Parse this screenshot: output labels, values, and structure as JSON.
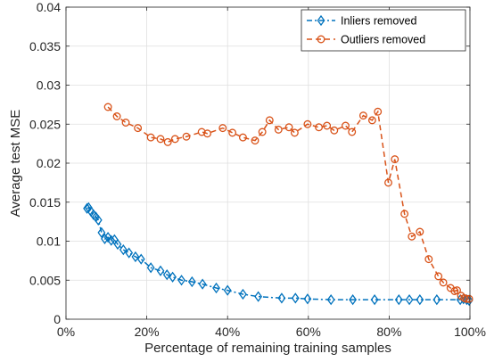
{
  "chart_data": {
    "type": "line",
    "xlabel": "Percentage of remaining training samples",
    "ylabel": "Average test MSE",
    "xlim": [
      0,
      100
    ],
    "ylim": [
      0,
      0.04
    ],
    "x_ticks": [
      0,
      20,
      40,
      60,
      80,
      100
    ],
    "x_tick_labels": [
      "0%",
      "20%",
      "40%",
      "60%",
      "80%",
      "100%"
    ],
    "y_ticks": [
      0,
      0.005,
      0.01,
      0.015,
      0.02,
      0.025,
      0.03,
      0.035,
      0.04
    ],
    "y_tick_labels": [
      "0",
      "0.005",
      "0.01",
      "0.015",
      "0.02",
      "0.025",
      "0.03",
      "0.035",
      "0.04"
    ],
    "grid": true,
    "legend_position": "top-right",
    "series": [
      {
        "name": "Inliers removed",
        "color": "#0072BD",
        "marker": "diamond",
        "line_style": "dash-dot",
        "x": [
          5.2,
          5.6,
          6.2,
          6.8,
          7.4,
          8.0,
          8.8,
          9.6,
          10.4,
          11.2,
          12.0,
          12.8,
          14.2,
          15.6,
          17.2,
          18.6,
          21.0,
          23.4,
          25.0,
          26.4,
          28.6,
          31.2,
          33.8,
          37.2,
          40.0,
          43.8,
          47.6,
          53.4,
          56.8,
          59.8,
          65.6,
          71.0,
          76.4,
          82.4,
          85.0,
          87.6,
          91.8,
          97.6,
          98.4,
          99.2,
          99.8
        ],
        "y": [
          0.0142,
          0.0143,
          0.0138,
          0.0134,
          0.0131,
          0.0127,
          0.0111,
          0.0103,
          0.0105,
          0.0101,
          0.0102,
          0.0096,
          0.0089,
          0.0085,
          0.008,
          0.0077,
          0.0066,
          0.0062,
          0.0057,
          0.0054,
          0.005,
          0.0048,
          0.0045,
          0.004,
          0.0037,
          0.0032,
          0.0029,
          0.0027,
          0.0027,
          0.0026,
          0.0025,
          0.0025,
          0.0025,
          0.0025,
          0.0025,
          0.0025,
          0.0025,
          0.0025,
          0.0026,
          0.0025,
          0.0024
        ]
      },
      {
        "name": "Outliers removed",
        "color": "#D95319",
        "marker": "circle",
        "line_style": "dashed",
        "x": [
          10.4,
          12.6,
          14.8,
          17.8,
          21.0,
          23.4,
          25.2,
          27.0,
          29.8,
          33.6,
          35.0,
          38.8,
          41.2,
          43.8,
          46.8,
          48.6,
          50.4,
          52.6,
          55.2,
          56.6,
          59.8,
          62.6,
          64.6,
          66.4,
          69.2,
          70.8,
          73.6,
          75.8,
          77.2,
          79.8,
          81.4,
          83.8,
          85.6,
          87.6,
          89.8,
          92.2,
          93.4,
          95.2,
          96.2,
          96.8,
          97.8,
          98.6,
          99.2,
          99.8
        ],
        "y": [
          0.0272,
          0.026,
          0.0252,
          0.0245,
          0.0233,
          0.0231,
          0.0227,
          0.0231,
          0.0234,
          0.024,
          0.0238,
          0.0245,
          0.0239,
          0.0233,
          0.0229,
          0.024,
          0.0255,
          0.0243,
          0.0246,
          0.0239,
          0.025,
          0.0246,
          0.0248,
          0.0242,
          0.0248,
          0.024,
          0.0261,
          0.0255,
          0.0266,
          0.0175,
          0.0205,
          0.0135,
          0.0106,
          0.0112,
          0.0077,
          0.0055,
          0.0047,
          0.004,
          0.0036,
          0.0037,
          0.003,
          0.0027,
          0.0026,
          0.0026
        ]
      }
    ]
  }
}
